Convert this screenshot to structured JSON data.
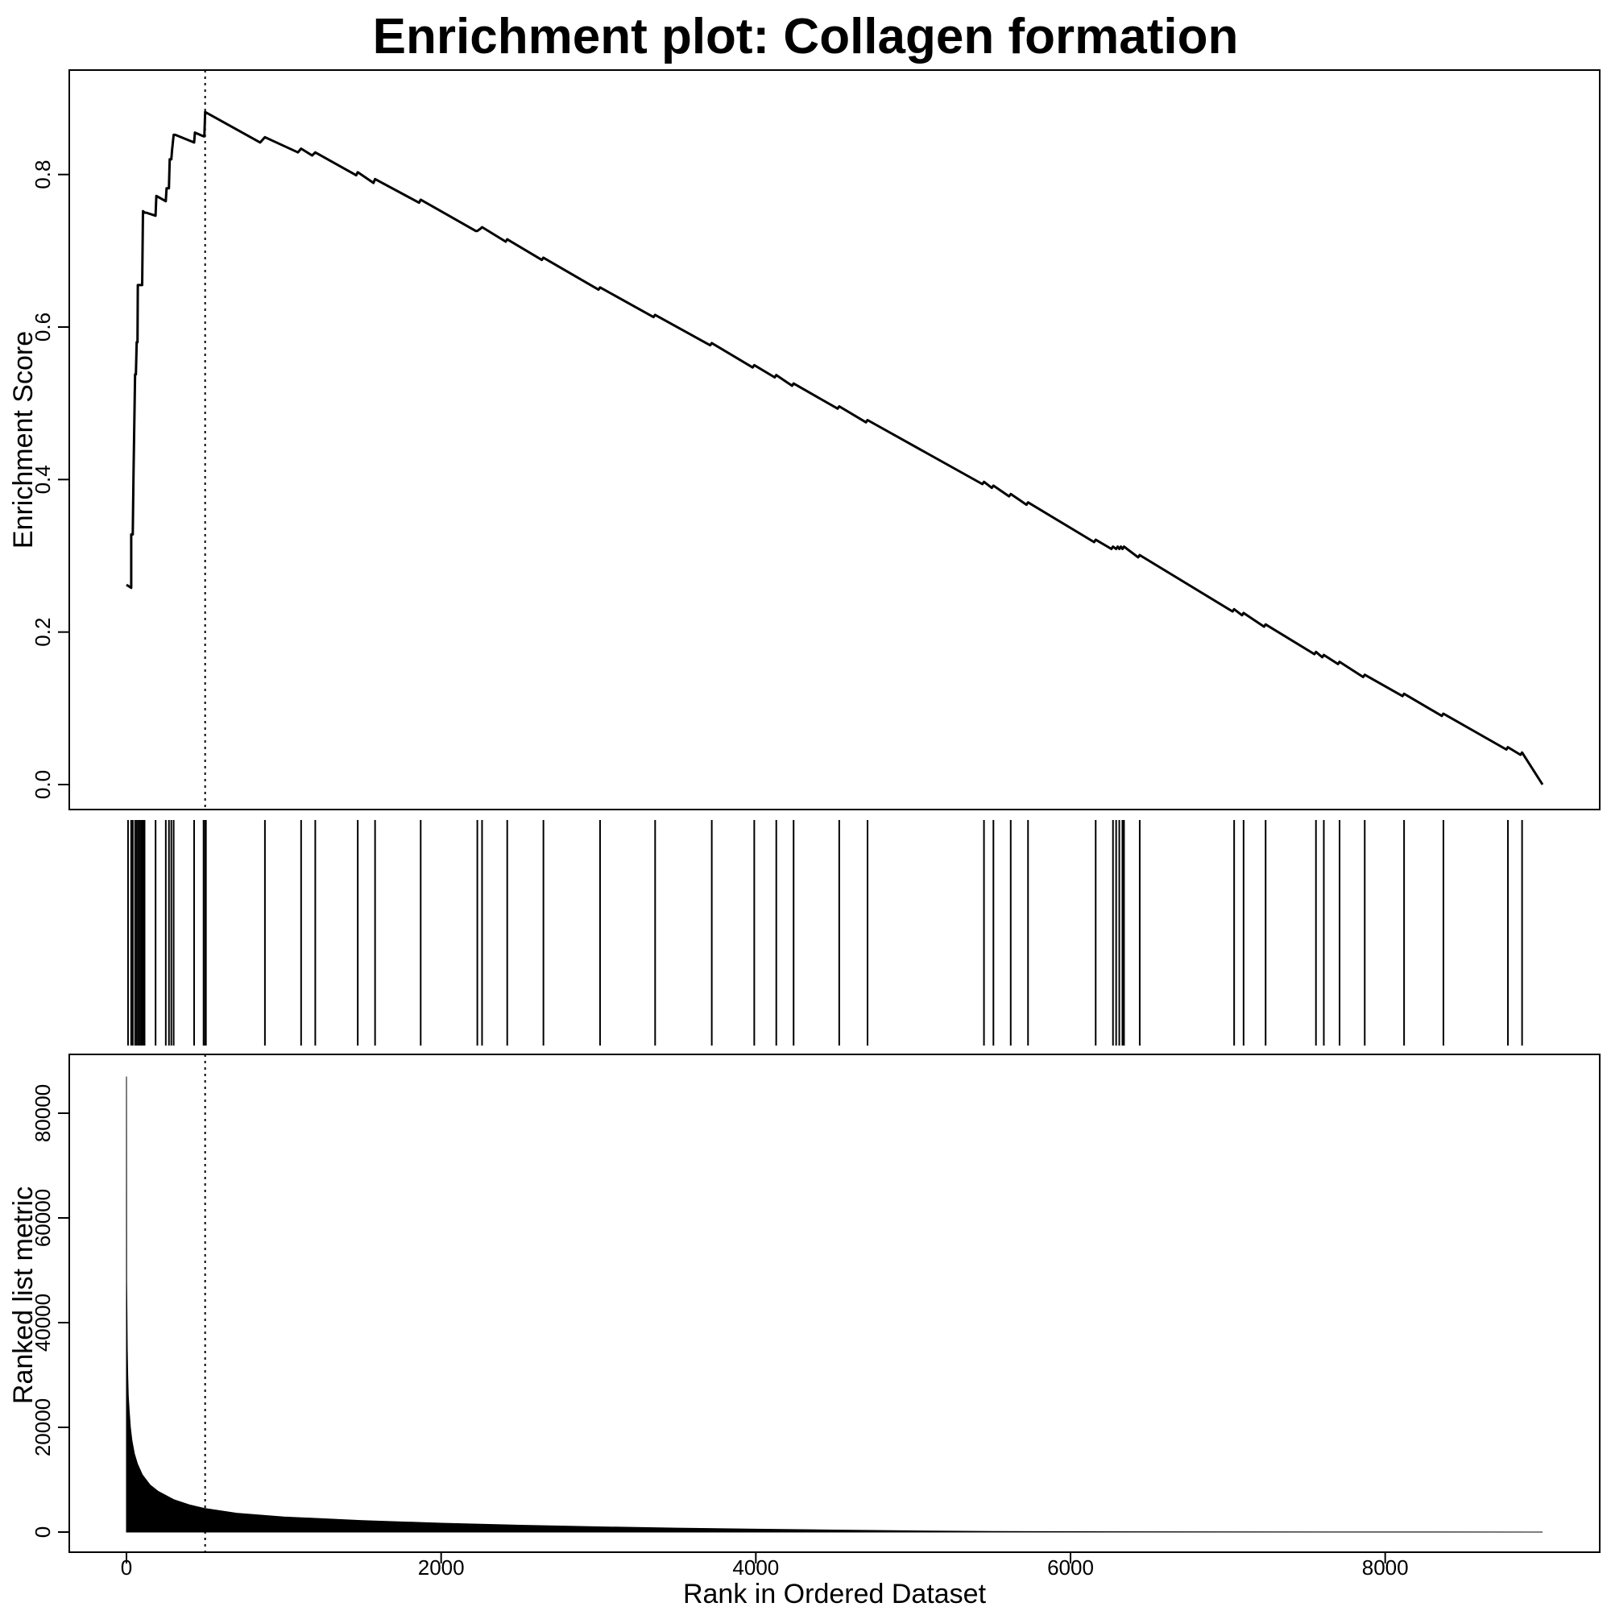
{
  "title": "Enrichment plot: Collagen formation",
  "chart_data": [
    {
      "type": "line",
      "ylabel": "Enrichment Score",
      "ylim": [
        0,
        0.9
      ],
      "xlim": [
        0,
        9000
      ],
      "yticks": [
        0.0,
        0.2,
        0.4,
        0.6,
        0.8
      ],
      "ytick_labels": [
        "0.0",
        "0.2",
        "0.4",
        "0.6",
        "0.8"
      ],
      "peak_rank": 500,
      "x": [
        0,
        30,
        30,
        40,
        45,
        55,
        60,
        65,
        70,
        72,
        78,
        80,
        85,
        90,
        95,
        100,
        105,
        115,
        120,
        125,
        185,
        190,
        250,
        255,
        270,
        275,
        285,
        290,
        300,
        310,
        430,
        435,
        490,
        495,
        500,
        850,
        880,
        1090,
        1110,
        1180,
        1200,
        1460,
        1470,
        1570,
        1580,
        1860,
        1870,
        2220,
        2230,
        2250,
        2260,
        2410,
        2420,
        2640,
        2650,
        3000,
        3010,
        3350,
        3360,
        3710,
        3720,
        3980,
        3990,
        4120,
        4130,
        4230,
        4240,
        4520,
        4530,
        4700,
        4710,
        5440,
        5450,
        5500,
        5510,
        5610,
        5620,
        5720,
        5730,
        6150,
        6160,
        6260,
        6270,
        6290,
        6300,
        6310,
        6320,
        6330,
        6340,
        6430,
        6440,
        7030,
        7040,
        7090,
        7100,
        7230,
        7240,
        7550,
        7560,
        7600,
        7610,
        7700,
        7710,
        7860,
        7870,
        8110,
        8120,
        8360,
        8370,
        8770,
        8780,
        8860,
        8870,
        9000
      ],
      "y": [
        0.262,
        0.258,
        0.328,
        0.328,
        0.41,
        0.538,
        0.538,
        0.58,
        0.58,
        0.655,
        0.655,
        0.655,
        0.655,
        0.655,
        0.655,
        0.655,
        0.752,
        0.75,
        0.75,
        0.75,
        0.746,
        0.772,
        0.765,
        0.782,
        0.782,
        0.82,
        0.82,
        0.832,
        0.852,
        0.852,
        0.842,
        0.855,
        0.85,
        0.85,
        0.882,
        0.842,
        0.849,
        0.829,
        0.834,
        0.825,
        0.829,
        0.799,
        0.803,
        0.789,
        0.794,
        0.763,
        0.767,
        0.726,
        0.726,
        0.729,
        0.731,
        0.712,
        0.715,
        0.688,
        0.691,
        0.649,
        0.652,
        0.613,
        0.616,
        0.576,
        0.579,
        0.547,
        0.55,
        0.534,
        0.537,
        0.523,
        0.526,
        0.493,
        0.496,
        0.475,
        0.478,
        0.394,
        0.397,
        0.389,
        0.392,
        0.378,
        0.381,
        0.367,
        0.37,
        0.318,
        0.321,
        0.309,
        0.312,
        0.309,
        0.312,
        0.309,
        0.312,
        0.309,
        0.312,
        0.298,
        0.301,
        0.227,
        0.23,
        0.222,
        0.225,
        0.207,
        0.21,
        0.171,
        0.174,
        0.167,
        0.17,
        0.158,
        0.161,
        0.141,
        0.144,
        0.116,
        0.119,
        0.09,
        0.093,
        0.046,
        0.049,
        0.039,
        0.042,
        0.0
      ]
    },
    {
      "type": "barcode",
      "hits": [
        10,
        30,
        40,
        55,
        65,
        75,
        85,
        95,
        105,
        115,
        185,
        250,
        270,
        285,
        300,
        430,
        490,
        500,
        505,
        880,
        1110,
        1200,
        1470,
        1580,
        1870,
        2230,
        2260,
        2420,
        2650,
        3010,
        3360,
        3720,
        3990,
        4130,
        4240,
        4530,
        4710,
        5450,
        5510,
        5620,
        5730,
        6160,
        6270,
        6290,
        6310,
        6330,
        6340,
        6440,
        7040,
        7100,
        7240,
        7560,
        7610,
        7710,
        7870,
        8120,
        8370,
        8780,
        8870
      ]
    },
    {
      "type": "area",
      "ylabel": "Ranked list metric",
      "xlabel": "Rank in Ordered Dataset",
      "xlim": [
        0,
        9000
      ],
      "ylim": [
        0,
        88000
      ],
      "xticks": [
        0,
        2000,
        4000,
        6000,
        8000
      ],
      "xtick_labels": [
        "0",
        "2000",
        "4000",
        "6000",
        "8000"
      ],
      "yticks": [
        0,
        20000,
        40000,
        60000,
        80000
      ],
      "ytick_labels": [
        "0",
        "20000",
        "40000",
        "60000",
        "80000"
      ],
      "peak_rank": 500,
      "x": [
        0,
        1,
        3,
        5,
        8,
        12,
        18,
        25,
        35,
        50,
        70,
        100,
        150,
        200,
        300,
        400,
        500,
        700,
        1000,
        1500,
        2000,
        2500,
        3000,
        3500,
        4000,
        4500,
        5000,
        5500,
        6000,
        7000,
        8000,
        9000
      ],
      "y": [
        87000,
        48000,
        42000,
        35000,
        30000,
        26000,
        23000,
        20000,
        17500,
        15000,
        13000,
        11000,
        9000,
        7800,
        6200,
        5200,
        4500,
        3600,
        2900,
        2200,
        1700,
        1300,
        1000,
        750,
        550,
        380,
        230,
        130,
        70,
        30,
        12,
        5
      ]
    }
  ]
}
